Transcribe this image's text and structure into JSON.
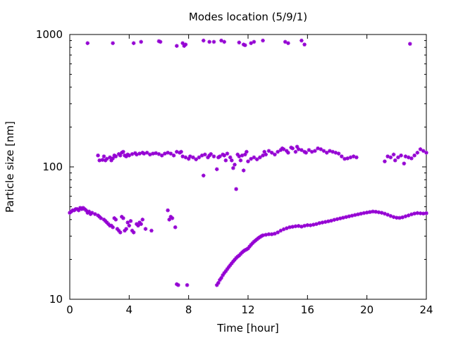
{
  "chart_data": {
    "type": "scatter",
    "title": "Modes location (5/9/1)",
    "xlabel": "Time [hour]",
    "ylabel": "Particle size [nm]",
    "xlim": [
      0,
      24
    ],
    "ylim": [
      10,
      1000
    ],
    "yscale": "log",
    "grid": false,
    "legend": "none",
    "marker_color": "#9400D3",
    "x_ticks": [
      "0",
      "4",
      "8",
      "12",
      "16",
      "20",
      "24"
    ],
    "y_ticks": [
      "10",
      "100",
      "1000"
    ],
    "series": [
      {
        "points": [
          [
            1.2,
            860
          ],
          [
            2.9,
            860
          ],
          [
            4.3,
            860
          ],
          [
            4.8,
            880
          ],
          [
            6.0,
            890
          ],
          [
            6.1,
            880
          ],
          [
            7.2,
            820
          ],
          [
            7.6,
            860
          ],
          [
            7.7,
            820
          ],
          [
            7.8,
            840
          ],
          [
            9.0,
            900
          ],
          [
            9.4,
            880
          ],
          [
            9.7,
            880
          ],
          [
            10.2,
            900
          ],
          [
            10.4,
            880
          ],
          [
            11.4,
            870
          ],
          [
            11.7,
            840
          ],
          [
            11.8,
            830
          ],
          [
            12.2,
            860
          ],
          [
            12.4,
            880
          ],
          [
            13.0,
            900
          ],
          [
            14.5,
            880
          ],
          [
            14.7,
            860
          ],
          [
            15.6,
            900
          ],
          [
            15.8,
            840
          ],
          [
            22.9,
            850
          ],
          [
            1.9,
            122
          ],
          [
            2.0,
            112
          ],
          [
            2.2,
            113
          ],
          [
            2.3,
            120
          ],
          [
            2.4,
            112
          ],
          [
            2.5,
            115
          ],
          [
            2.7,
            118
          ],
          [
            2.8,
            112
          ],
          [
            2.9,
            116
          ],
          [
            3.0,
            122
          ],
          [
            3.1,
            120
          ],
          [
            3.3,
            125
          ],
          [
            3.4,
            122
          ],
          [
            3.5,
            128
          ],
          [
            3.6,
            130
          ],
          [
            3.7,
            122
          ],
          [
            3.8,
            120
          ],
          [
            3.9,
            124
          ],
          [
            4.0,
            122
          ],
          [
            4.2,
            125
          ],
          [
            4.4,
            127
          ],
          [
            4.5,
            124
          ],
          [
            4.7,
            126
          ],
          [
            4.9,
            128
          ],
          [
            5.0,
            126
          ],
          [
            5.2,
            128
          ],
          [
            5.4,
            124
          ],
          [
            5.6,
            126
          ],
          [
            5.8,
            127
          ],
          [
            6.0,
            125
          ],
          [
            6.2,
            122
          ],
          [
            6.4,
            126
          ],
          [
            6.6,
            128
          ],
          [
            6.8,
            126
          ],
          [
            7.0,
            122
          ],
          [
            7.2,
            130
          ],
          [
            7.4,
            128
          ],
          [
            7.5,
            130
          ],
          [
            7.6,
            120
          ],
          [
            7.8,
            118
          ],
          [
            8.0,
            115
          ],
          [
            8.1,
            120
          ],
          [
            8.3,
            118
          ],
          [
            8.5,
            114
          ],
          [
            8.7,
            118
          ],
          [
            8.9,
            122
          ],
          [
            9.0,
            86
          ],
          [
            9.1,
            124
          ],
          [
            9.3,
            118
          ],
          [
            9.4,
            122
          ],
          [
            9.5,
            125
          ],
          [
            9.7,
            120
          ],
          [
            9.9,
            96
          ],
          [
            10.0,
            118
          ],
          [
            10.1,
            120
          ],
          [
            10.3,
            124
          ],
          [
            10.4,
            122
          ],
          [
            10.5,
            112
          ],
          [
            10.6,
            126
          ],
          [
            10.8,
            118
          ],
          [
            10.9,
            112
          ],
          [
            11.0,
            98
          ],
          [
            11.1,
            104
          ],
          [
            11.2,
            68
          ],
          [
            11.3,
            124
          ],
          [
            11.4,
            120
          ],
          [
            11.5,
            112
          ],
          [
            11.6,
            122
          ],
          [
            11.7,
            94
          ],
          [
            11.8,
            124
          ],
          [
            11.9,
            130
          ],
          [
            12.0,
            110
          ],
          [
            12.2,
            115
          ],
          [
            12.4,
            118
          ],
          [
            12.6,
            114
          ],
          [
            12.8,
            118
          ],
          [
            13.0,
            122
          ],
          [
            13.1,
            130
          ],
          [
            13.2,
            124
          ],
          [
            13.4,
            132
          ],
          [
            13.6,
            128
          ],
          [
            13.8,
            124
          ],
          [
            14.0,
            130
          ],
          [
            14.2,
            134
          ],
          [
            14.3,
            138
          ],
          [
            14.4,
            136
          ],
          [
            14.6,
            132
          ],
          [
            14.7,
            128
          ],
          [
            14.9,
            140
          ],
          [
            15.0,
            138
          ],
          [
            15.2,
            130
          ],
          [
            15.3,
            142
          ],
          [
            15.4,
            136
          ],
          [
            15.6,
            134
          ],
          [
            15.8,
            130
          ],
          [
            15.9,
            128
          ],
          [
            16.1,
            134
          ],
          [
            16.3,
            130
          ],
          [
            16.5,
            132
          ],
          [
            16.7,
            138
          ],
          [
            16.9,
            136
          ],
          [
            17.1,
            132
          ],
          [
            17.3,
            128
          ],
          [
            17.5,
            132
          ],
          [
            17.7,
            130
          ],
          [
            17.9,
            128
          ],
          [
            18.1,
            126
          ],
          [
            18.3,
            120
          ],
          [
            18.5,
            115
          ],
          [
            18.7,
            116
          ],
          [
            18.9,
            118
          ],
          [
            19.1,
            120
          ],
          [
            19.3,
            118
          ],
          [
            21.2,
            110
          ],
          [
            21.4,
            120
          ],
          [
            21.6,
            118
          ],
          [
            21.8,
            124
          ],
          [
            21.9,
            112
          ],
          [
            22.1,
            118
          ],
          [
            22.3,
            122
          ],
          [
            22.5,
            106
          ],
          [
            22.6,
            120
          ],
          [
            22.8,
            118
          ],
          [
            23.0,
            116
          ],
          [
            23.2,
            122
          ],
          [
            23.4,
            128
          ],
          [
            23.6,
            136
          ],
          [
            23.8,
            132
          ],
          [
            24.0,
            128
          ],
          [
            0.0,
            45
          ],
          [
            0.1,
            46
          ],
          [
            0.2,
            47
          ],
          [
            0.3,
            47
          ],
          [
            0.4,
            48
          ],
          [
            0.5,
            48
          ],
          [
            0.6,
            47
          ],
          [
            0.7,
            49
          ],
          [
            0.8,
            48
          ],
          [
            0.9,
            49
          ],
          [
            1.0,
            48
          ],
          [
            1.1,
            47
          ],
          [
            1.2,
            45
          ],
          [
            1.3,
            46
          ],
          [
            1.4,
            44
          ],
          [
            1.5,
            45
          ],
          [
            1.7,
            44
          ],
          [
            1.9,
            43
          ],
          [
            2.0,
            42
          ],
          [
            2.1,
            41
          ],
          [
            2.3,
            40
          ],
          [
            2.4,
            39
          ],
          [
            2.5,
            38
          ],
          [
            2.6,
            37
          ],
          [
            2.7,
            36
          ],
          [
            2.8,
            36
          ],
          [
            2.9,
            35
          ],
          [
            3.0,
            41
          ],
          [
            3.1,
            40
          ],
          [
            3.2,
            34
          ],
          [
            3.3,
            33
          ],
          [
            3.4,
            32
          ],
          [
            3.5,
            42
          ],
          [
            3.6,
            41
          ],
          [
            3.7,
            33
          ],
          [
            3.8,
            34
          ],
          [
            3.9,
            38
          ],
          [
            4.0,
            36
          ],
          [
            4.1,
            39
          ],
          [
            4.2,
            33
          ],
          [
            4.3,
            32
          ],
          [
            4.5,
            37
          ],
          [
            4.6,
            36
          ],
          [
            4.7,
            38
          ],
          [
            4.8,
            37
          ],
          [
            4.9,
            40
          ],
          [
            5.1,
            34
          ],
          [
            5.5,
            33
          ],
          [
            6.6,
            47
          ],
          [
            6.7,
            40
          ],
          [
            6.8,
            42
          ],
          [
            6.9,
            41
          ],
          [
            7.1,
            35
          ],
          [
            7.2,
            13
          ],
          [
            7.3,
            12.8
          ],
          [
            7.9,
            12.8
          ],
          [
            9.9,
            12.8
          ],
          [
            10.0,
            13.3
          ],
          [
            10.1,
            14
          ],
          [
            10.2,
            14.5
          ],
          [
            10.3,
            15.2
          ],
          [
            10.4,
            15.8
          ],
          [
            10.5,
            16.3
          ],
          [
            10.6,
            16.9
          ],
          [
            10.7,
            17.5
          ],
          [
            10.8,
            18.1
          ],
          [
            10.9,
            18.7
          ],
          [
            11.0,
            19.3
          ],
          [
            11.1,
            19.9
          ],
          [
            11.2,
            20.5
          ],
          [
            11.3,
            21
          ],
          [
            11.4,
            21.4
          ],
          [
            11.5,
            22
          ],
          [
            11.6,
            22.6
          ],
          [
            11.7,
            23.1
          ],
          [
            11.8,
            23.5
          ],
          [
            11.9,
            23.8
          ],
          [
            12.0,
            24.2
          ],
          [
            12.1,
            25
          ],
          [
            12.2,
            25.8
          ],
          [
            12.3,
            26.5
          ],
          [
            12.4,
            27.2
          ],
          [
            12.5,
            27.8
          ],
          [
            12.6,
            28.4
          ],
          [
            12.7,
            29
          ],
          [
            12.8,
            29.5
          ],
          [
            12.9,
            30
          ],
          [
            13.0,
            30.4
          ],
          [
            13.2,
            30.7
          ],
          [
            13.4,
            31
          ],
          [
            13.6,
            31
          ],
          [
            13.8,
            31.3
          ],
          [
            14.0,
            32
          ],
          [
            14.2,
            33
          ],
          [
            14.4,
            33.8
          ],
          [
            14.6,
            34.4
          ],
          [
            14.8,
            35
          ],
          [
            15.0,
            35.3
          ],
          [
            15.2,
            35.6
          ],
          [
            15.4,
            35.8
          ],
          [
            15.6,
            35.4
          ],
          [
            15.8,
            35.9
          ],
          [
            16.0,
            36.3
          ],
          [
            16.2,
            36.2
          ],
          [
            16.4,
            36.6
          ],
          [
            16.6,
            37
          ],
          [
            16.8,
            37.6
          ],
          [
            17.0,
            38
          ],
          [
            17.2,
            38.4
          ],
          [
            17.4,
            38.8
          ],
          [
            17.6,
            39.2
          ],
          [
            17.8,
            39.8
          ],
          [
            18.0,
            40.3
          ],
          [
            18.2,
            40.8
          ],
          [
            18.4,
            41.3
          ],
          [
            18.6,
            41.8
          ],
          [
            18.8,
            42.3
          ],
          [
            19.0,
            42.8
          ],
          [
            19.2,
            43.3
          ],
          [
            19.4,
            43.8
          ],
          [
            19.6,
            44.3
          ],
          [
            19.8,
            44.8
          ],
          [
            20.0,
            45.2
          ],
          [
            20.2,
            45.6
          ],
          [
            20.4,
            46
          ],
          [
            20.6,
            45.8
          ],
          [
            20.8,
            45.4
          ],
          [
            21.0,
            45
          ],
          [
            21.2,
            44.3
          ],
          [
            21.4,
            43.5
          ],
          [
            21.6,
            42.6
          ],
          [
            21.8,
            41.8
          ],
          [
            22.0,
            41.3
          ],
          [
            22.2,
            41.2
          ],
          [
            22.4,
            41.6
          ],
          [
            22.6,
            42.3
          ],
          [
            22.8,
            43
          ],
          [
            23.0,
            43.8
          ],
          [
            23.2,
            44.4
          ],
          [
            23.4,
            44.8
          ],
          [
            23.6,
            44.6
          ],
          [
            23.8,
            44.4
          ],
          [
            24.0,
            44.7
          ]
        ]
      }
    ]
  }
}
